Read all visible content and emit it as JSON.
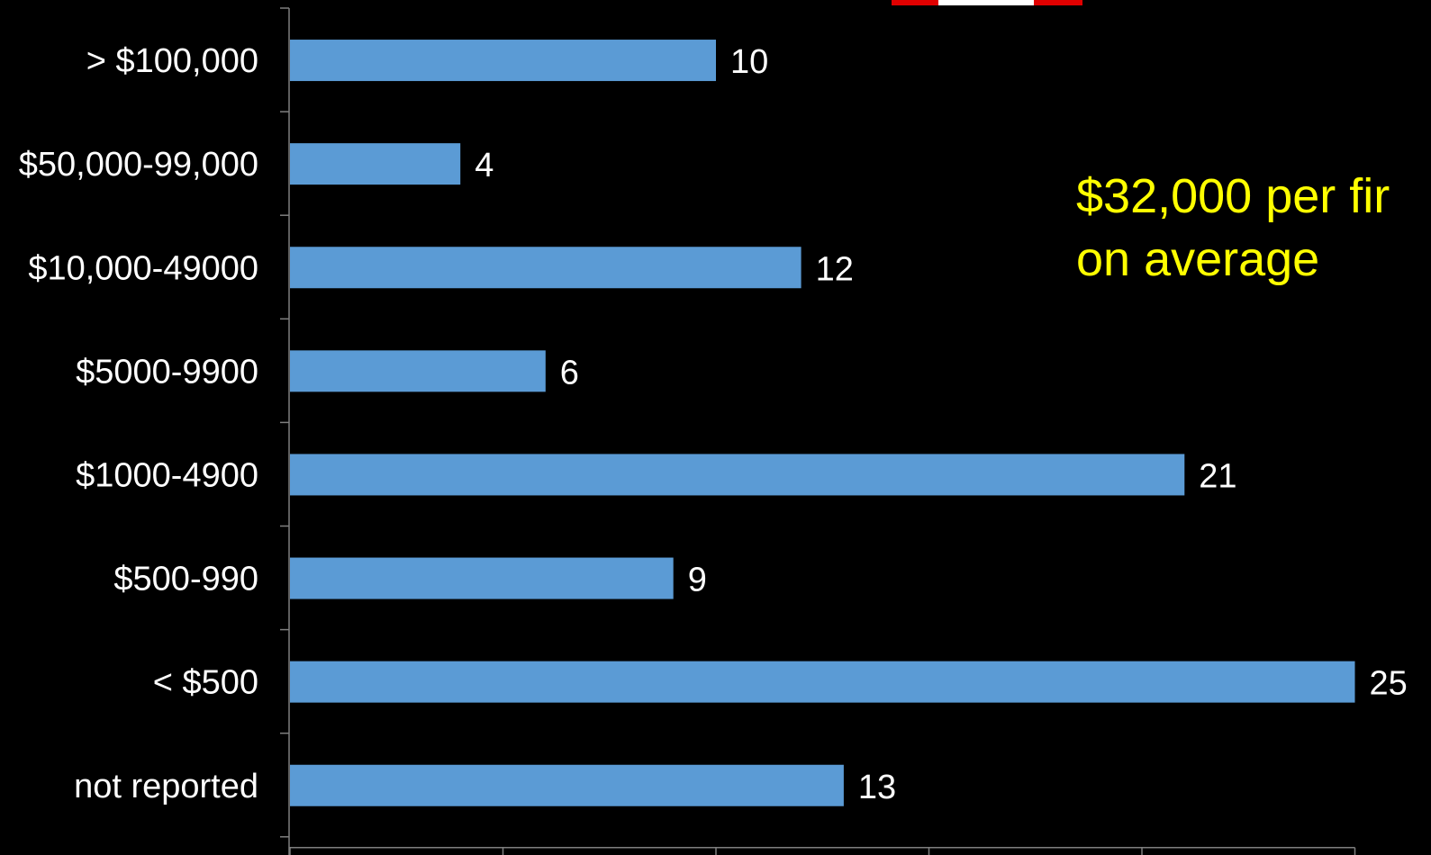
{
  "chart_data": {
    "type": "bar",
    "orientation": "horizontal",
    "categories": [
      "> $100,000",
      "$50,000-99,000",
      "$10,000-49000",
      "$5000-9900",
      "$1000-4900",
      "$500-990",
      "< $500",
      "not reported"
    ],
    "values": [
      10,
      4,
      12,
      6,
      21,
      9,
      25,
      13
    ],
    "title": "",
    "xlabel": "",
    "ylabel": "",
    "xlim": [
      0,
      25
    ],
    "grid": false,
    "bar_color": "#5b9bd5"
  },
  "annotation": {
    "line1": "$32,000 per fir",
    "line2": "on average"
  },
  "colors": {
    "background": "#000000",
    "text": "#ffffff",
    "annotation": "#ffff00",
    "axis": "#7f7f7f",
    "flag_red": "#e00000",
    "flag_white": "#ffffff"
  }
}
